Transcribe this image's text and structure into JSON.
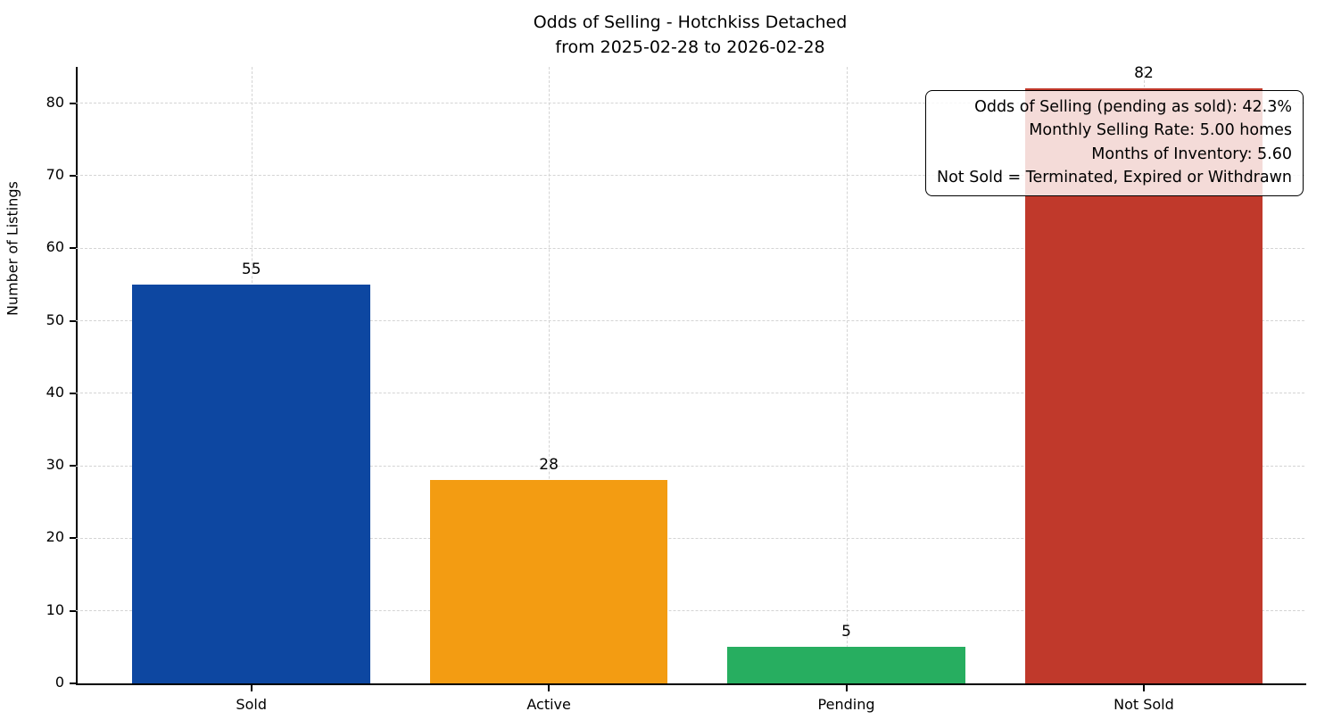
{
  "chart_data": {
    "type": "bar",
    "title": "Odds of Selling - Hotchkiss Detached\nfrom 2025-02-28 to 2026-02-28",
    "title_lines": [
      "Odds of Selling - Hotchkiss Detached",
      "from 2025-02-28 to 2026-02-28"
    ],
    "categories": [
      "Sold",
      "Active",
      "Pending",
      "Not Sold"
    ],
    "values": [
      55,
      28,
      5,
      82
    ],
    "bar_colors": [
      "#0d47a1",
      "#f39c12",
      "#27ae60",
      "#c0392b"
    ],
    "xlabel": "",
    "ylabel": "Number of Listings",
    "ylim": [
      0,
      85
    ],
    "yticks": [
      0,
      10,
      20,
      30,
      40,
      50,
      60,
      70,
      80
    ],
    "grid": "dashed, horizontal and vertical",
    "legend": "none",
    "bar_value_labels": true,
    "annotation_lines": [
      "Odds of Selling (pending as sold): 42.3%",
      "Monthly Selling Rate: 5.00 homes",
      "Months of Inventory: 5.60",
      "Not Sold = Terminated, Expired or Withdrawn"
    ]
  }
}
